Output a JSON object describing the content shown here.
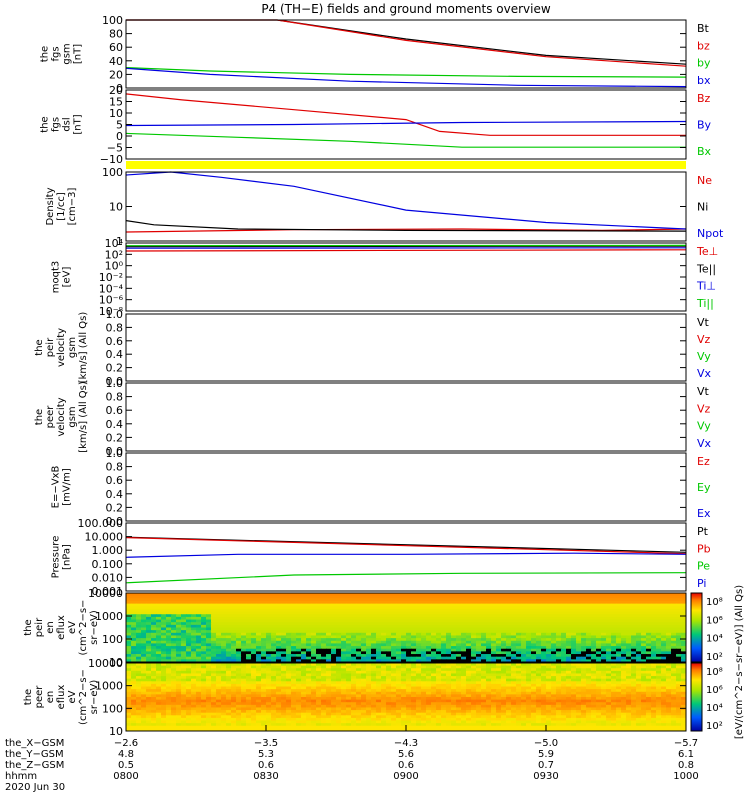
{
  "title": "P4 (TH−E) fields and ground moments overview",
  "colors": {
    "black": "#000000",
    "red": "#e00000",
    "green": "#00c800",
    "blue": "#0000e0",
    "yellow": "#ffff00"
  },
  "chart_data": [
    {
      "id": "p1",
      "type": "line",
      "ylabel": [
        "the",
        "fgs",
        "gsm",
        "[nT]"
      ],
      "ylim": [
        0,
        100
      ],
      "yticks": [
        "100",
        "80",
        "60",
        "40",
        "20",
        "0"
      ],
      "series": [
        {
          "name": "Bt",
          "color": "black",
          "x": [
            0,
            0.27,
            0.5,
            0.75,
            1
          ],
          "y": [
            130,
            103,
            72,
            48,
            35
          ]
        },
        {
          "name": "bz",
          "color": "red",
          "x": [
            0,
            0.27,
            0.5,
            0.75,
            1
          ],
          "y": [
            128,
            101,
            70,
            46,
            32
          ]
        },
        {
          "name": "by",
          "color": "green",
          "x": [
            0,
            0.15,
            0.4,
            0.7,
            1
          ],
          "y": [
            30,
            25,
            20,
            17,
            16
          ]
        },
        {
          "name": "bx",
          "color": "blue",
          "x": [
            0,
            0.15,
            0.4,
            0.7,
            1
          ],
          "y": [
            29,
            20,
            10,
            4,
            2
          ]
        }
      ]
    },
    {
      "id": "p2",
      "type": "line",
      "ylabel": [
        "the",
        "fgs",
        "dsl",
        "[nT]"
      ],
      "ylim": [
        -14,
        21
      ],
      "yticks": [
        "20",
        "15",
        "10",
        "5",
        "0",
        "−5",
        "−10"
      ],
      "series": [
        {
          "name": "Bz",
          "color": "red",
          "x": [
            0,
            0.1,
            0.3,
            0.5,
            0.56,
            0.65,
            1
          ],
          "y": [
            19,
            16,
            11,
            6,
            0,
            -2,
            -2
          ]
        },
        {
          "name": "By",
          "color": "blue",
          "x": [
            0,
            0.3,
            0.6,
            1
          ],
          "y": [
            3,
            3.5,
            4.5,
            5
          ]
        },
        {
          "name": "Bx",
          "color": "green",
          "x": [
            0,
            0.2,
            0.4,
            0.6,
            1
          ],
          "y": [
            -1,
            -3,
            -5,
            -8,
            -8
          ]
        }
      ]
    },
    {
      "id": "p4",
      "type": "line",
      "ylabel": [
        "Density",
        "[1/cc]",
        "[cm−3]"
      ],
      "yscale": "log",
      "ylim": [
        0.25,
        200
      ],
      "yticks": [
        "100",
        "10",
        "1"
      ],
      "series": [
        {
          "name": "Ne",
          "color": "red",
          "x": [
            0,
            0.3,
            0.6,
            0.85,
            1
          ],
          "y": [
            0.6,
            0.75,
            0.8,
            0.7,
            0.8
          ]
        },
        {
          "name": "Ni",
          "color": "black",
          "x": [
            0,
            0.05,
            0.2,
            0.5,
            1
          ],
          "y": [
            1.8,
            1.2,
            0.8,
            0.7,
            0.65
          ]
        },
        {
          "name": "Npot",
          "color": "blue",
          "x": [
            0,
            0.08,
            0.17,
            0.3,
            0.5,
            0.75,
            1
          ],
          "y": [
            150,
            200,
            120,
            50,
            5,
            1.5,
            0.8
          ]
        }
      ]
    },
    {
      "id": "p5",
      "type": "line",
      "ylabel": [
        "moqt3",
        "[eV]"
      ],
      "yscale": "log",
      "ylim": [
        1e-09,
        10000.0
      ],
      "yticks": [
        "10⁴",
        "10²",
        "10⁰",
        "10⁻²",
        "10⁻⁴",
        "10⁻⁶",
        "10⁻⁸"
      ],
      "series": [
        {
          "name": "Te⊥",
          "color": "red",
          "x": [
            0,
            1
          ],
          "y": [
            300,
            500
          ]
        },
        {
          "name": "Te||",
          "color": "black",
          "x": [
            0,
            1
          ],
          "y": [
            2000,
            2500
          ]
        },
        {
          "name": "Ti⊥",
          "color": "blue",
          "x": [
            0,
            1
          ],
          "y": [
            1000,
            1200
          ]
        },
        {
          "name": "Ti||",
          "color": "green",
          "x": [
            0,
            1
          ],
          "y": [
            3000,
            3500
          ]
        }
      ]
    },
    {
      "id": "p6",
      "type": "line",
      "ylabel": [
        "the",
        "peir",
        "velocity",
        "gsm",
        "[km/s] (All Qs)"
      ],
      "ylim": [
        0,
        1
      ],
      "yticks": [
        "1.0",
        "0.8",
        "0.6",
        "0.4",
        "0.2",
        "0.0"
      ],
      "series": [
        {
          "name": "Vt",
          "color": "black"
        },
        {
          "name": "Vz",
          "color": "red"
        },
        {
          "name": "Vy",
          "color": "green"
        },
        {
          "name": "Vx",
          "color": "blue"
        }
      ]
    },
    {
      "id": "p7",
      "type": "line",
      "ylabel": [
        "the",
        "peer",
        "velocity",
        "gsm",
        "[km/s] (All Qs)"
      ],
      "ylim": [
        0,
        1
      ],
      "yticks": [
        "1.0",
        "0.8",
        "0.6",
        "0.4",
        "0.2",
        "0.0"
      ],
      "series": [
        {
          "name": "Vt",
          "color": "black"
        },
        {
          "name": "Vz",
          "color": "red"
        },
        {
          "name": "Vy",
          "color": "green"
        },
        {
          "name": "Vx",
          "color": "blue"
        }
      ]
    },
    {
      "id": "p8",
      "type": "line",
      "ylabel": [
        "E=−VxB",
        "[mV/m]"
      ],
      "ylim": [
        0,
        1
      ],
      "yticks": [
        "1.0",
        "0.8",
        "0.6",
        "0.4",
        "0.2",
        "0.0"
      ],
      "series": [
        {
          "name": "Ez",
          "color": "red"
        },
        {
          "name": "Ey",
          "color": "green"
        },
        {
          "name": "Ex",
          "color": "blue"
        }
      ]
    },
    {
      "id": "p9",
      "type": "line",
      "ylabel": [
        "Pressure",
        "[nPa]"
      ],
      "yscale": "log",
      "ylim": [
        0.001,
        100
      ],
      "yticks": [
        "100.000",
        "10.000",
        "1.000",
        "0.100",
        "0.010",
        "0.001"
      ],
      "series": [
        {
          "name": "Pt",
          "color": "black",
          "x": [
            0,
            1
          ],
          "y": [
            9,
            0.7
          ]
        },
        {
          "name": "Pb",
          "color": "red",
          "x": [
            0,
            1
          ],
          "y": [
            8.5,
            0.55
          ]
        },
        {
          "name": "Pe",
          "color": "green",
          "x": [
            0,
            0.3,
            0.6,
            1
          ],
          "y": [
            0.004,
            0.015,
            0.02,
            0.022
          ]
        },
        {
          "name": "Pi",
          "color": "blue",
          "x": [
            0,
            0.2,
            0.5,
            0.8,
            1
          ],
          "y": [
            0.3,
            0.5,
            0.5,
            0.6,
            0.5
          ]
        }
      ]
    },
    {
      "id": "p10",
      "type": "heatmap",
      "ylabel": [
        "the",
        "peir",
        "en",
        "eflux",
        "eV",
        "(cm^2−s−",
        "sr−eV)"
      ],
      "yscale": "log",
      "yticks": [
        "10000",
        "1000",
        "100",
        "10"
      ],
      "colorbar_label": "[eV/(cm^2−s−sr−eV)] (All Qs)",
      "colorbar_ticks": [
        "10⁸",
        "10⁶",
        "10⁴",
        "10²"
      ]
    },
    {
      "id": "p11",
      "type": "heatmap",
      "ylabel": [
        "the",
        "peer",
        "en",
        "eflux",
        "eV",
        "(cm^2−s−",
        "sr−eV)"
      ],
      "yscale": "log",
      "yticks": [
        "10000",
        "1000",
        "100",
        "10"
      ],
      "colorbar_label": "[eV/(cm^2−s−sr−eV)] (All Qs)",
      "colorbar_ticks": [
        "10⁸",
        "10⁶",
        "10⁴",
        "10²"
      ]
    }
  ],
  "xaxis": {
    "rows": [
      {
        "label": "the_X−GSM",
        "values": [
          "−2.6",
          "−3.5",
          "−4.3",
          "−5.0",
          "−5.7"
        ]
      },
      {
        "label": "the_Y−GSM",
        "values": [
          "4.8",
          "5.3",
          "5.6",
          "5.9",
          "6.1"
        ]
      },
      {
        "label": "the_Z−GSM",
        "values": [
          "0.5",
          "0.6",
          "0.6",
          "0.7",
          "0.8"
        ]
      },
      {
        "label": "hhmm",
        "values": [
          "0800",
          "0830",
          "0900",
          "0930",
          "1000"
        ]
      }
    ],
    "date": "2020 Jun 30"
  }
}
